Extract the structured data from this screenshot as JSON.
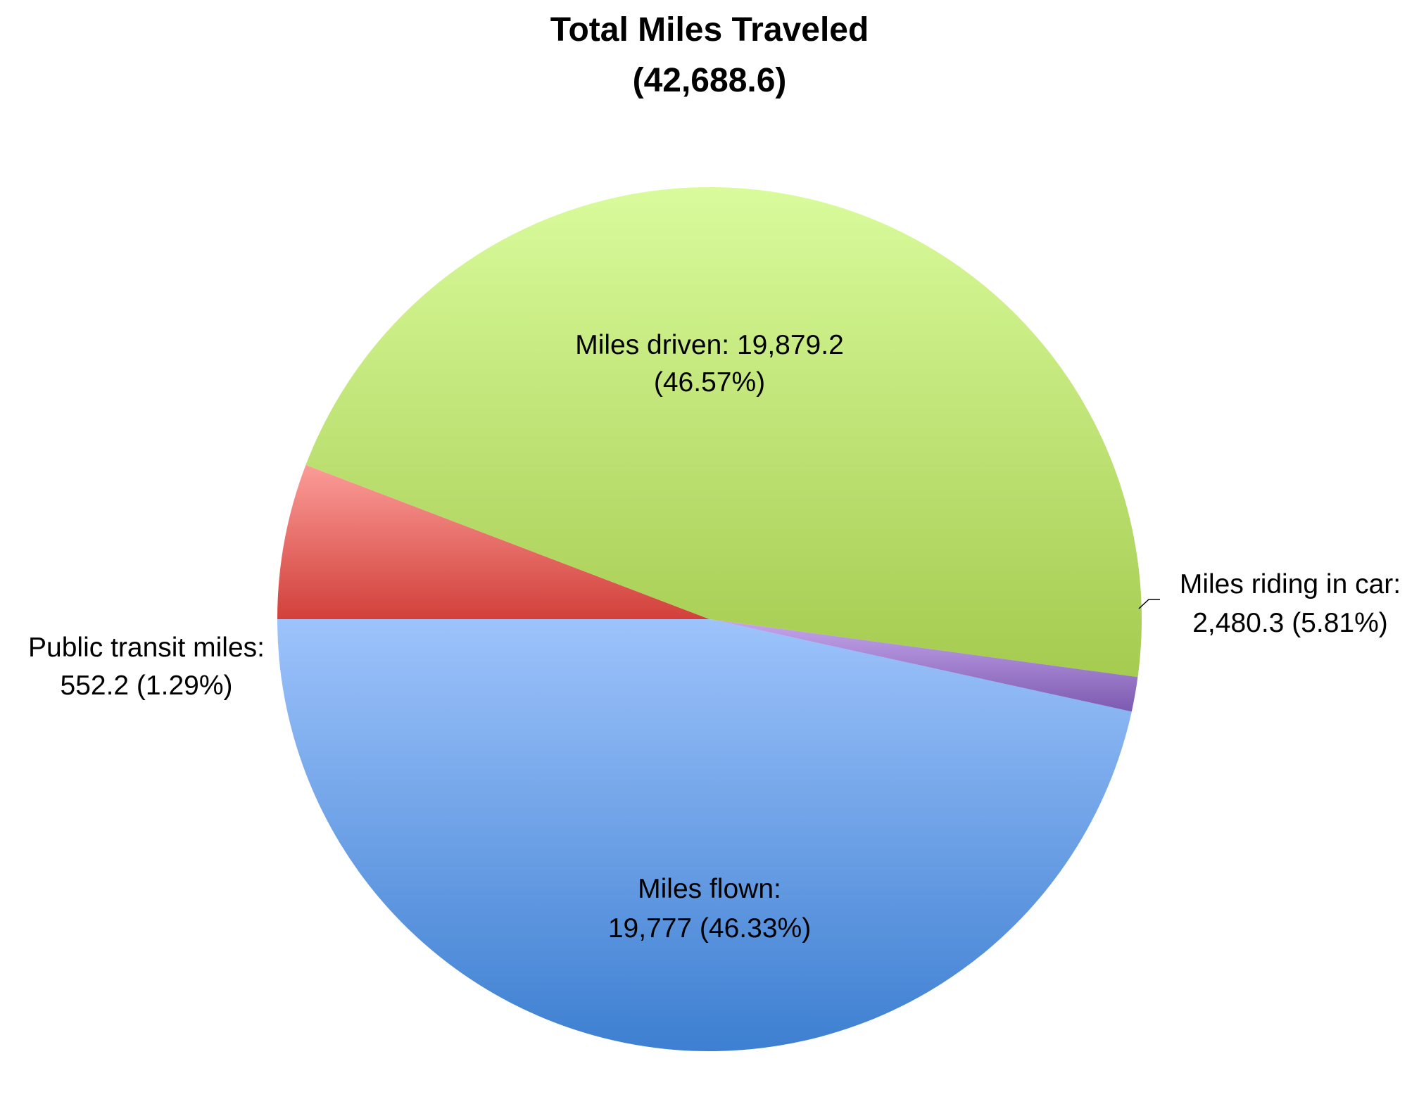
{
  "chart_data": {
    "type": "pie",
    "title_line1": "Total Miles Traveled",
    "title_line2": "(42,688.6)",
    "legend": "none",
    "slices": [
      {
        "name": "Miles driven",
        "value": 19879.2,
        "percent": 46.57,
        "color_top": "#9dc3fb",
        "color_bottom": "#3d7fd1",
        "label_line1": "Miles driven: 19,879.2",
        "label_line2": "(46.57%)"
      },
      {
        "name": "Miles riding in car",
        "value": 2480.3,
        "percent": 5.81,
        "color_top": "#fb9c98",
        "color_bottom": "#d2403a",
        "label_line1": "Miles riding in car:",
        "label_line2": "2,480.3 (5.81%)"
      },
      {
        "name": "Miles flown",
        "value": 19777,
        "percent": 46.33,
        "color_top": "#d9fb9c",
        "color_bottom": "#a5cb4f",
        "label_line1": "Miles flown:",
        "label_line2": "19,777 (46.33%)"
      },
      {
        "name": "Public transit miles",
        "value": 552.2,
        "percent": 1.29,
        "color_top": "#c6a6ec",
        "color_bottom": "#7c5ab0",
        "label_line1": "Public transit miles:",
        "label_line2": "552.2 (1.29%)"
      }
    ]
  }
}
